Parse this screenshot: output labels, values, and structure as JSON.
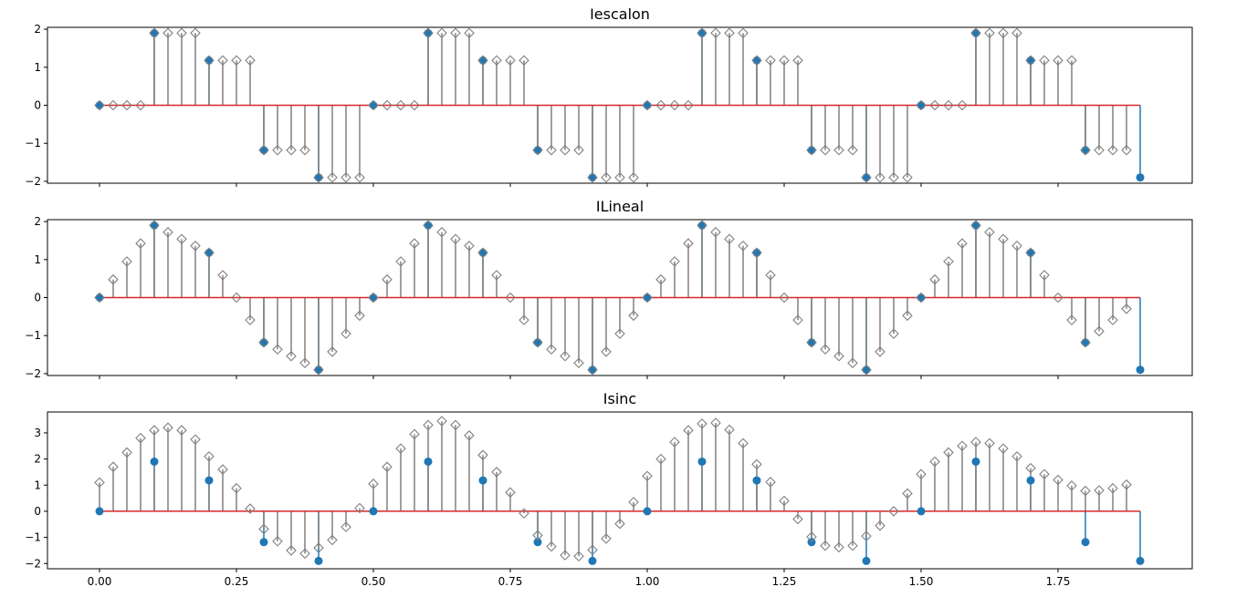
{
  "colors": {
    "sample_marker": "#1f77b4",
    "interp_stem": "#808080",
    "baseline": "#d62728"
  },
  "chart_data": [
    {
      "type": "stem",
      "title": "Iescalon",
      "xlim": [
        -0.095,
        1.995
      ],
      "ylim": [
        -2.05,
        2.05
      ],
      "yticks": [
        -2,
        -1,
        0,
        1,
        2
      ],
      "ytick_labels": [
        "−2",
        "−1",
        "0",
        "1",
        "2"
      ],
      "xticks": [
        0,
        0.25,
        0.5,
        0.75,
        1.0,
        1.25,
        1.5,
        1.75
      ],
      "xtick_labels": [],
      "samples": {
        "x": [
          0,
          0.1,
          0.2,
          0.3,
          0.4,
          0.5,
          0.6,
          0.7,
          0.8,
          0.9,
          1.0,
          1.1,
          1.2,
          1.3,
          1.4,
          1.5,
          1.6,
          1.7,
          1.8,
          1.9
        ],
        "y": [
          0,
          1.9,
          1.18,
          -1.18,
          -1.9,
          0,
          1.9,
          1.18,
          -1.18,
          -1.9,
          0,
          1.9,
          1.18,
          -1.18,
          -1.9,
          0,
          1.9,
          1.18,
          -1.18,
          -1.9
        ]
      },
      "interp": {
        "x": [
          0,
          0.025,
          0.05,
          0.075,
          0.1,
          0.125,
          0.15,
          0.175,
          0.2,
          0.225,
          0.25,
          0.275,
          0.3,
          0.325,
          0.35,
          0.375,
          0.4,
          0.425,
          0.45,
          0.475,
          0.5,
          0.525,
          0.55,
          0.575,
          0.6,
          0.625,
          0.65,
          0.675,
          0.7,
          0.725,
          0.75,
          0.775,
          0.8,
          0.825,
          0.85,
          0.875,
          0.9,
          0.925,
          0.95,
          0.975,
          1.0,
          1.025,
          1.05,
          1.075,
          1.1,
          1.125,
          1.15,
          1.175,
          1.2,
          1.225,
          1.25,
          1.275,
          1.3,
          1.325,
          1.35,
          1.375,
          1.4,
          1.425,
          1.45,
          1.475,
          1.5,
          1.525,
          1.55,
          1.575,
          1.6,
          1.625,
          1.65,
          1.675,
          1.7,
          1.725,
          1.75,
          1.775,
          1.8,
          1.825,
          1.85,
          1.875
        ],
        "y": [
          0,
          0,
          0,
          0,
          1.9,
          1.9,
          1.9,
          1.9,
          1.18,
          1.18,
          1.18,
          1.18,
          -1.18,
          -1.18,
          -1.18,
          -1.18,
          -1.9,
          -1.9,
          -1.9,
          -1.9,
          0,
          0,
          0,
          0,
          1.9,
          1.9,
          1.9,
          1.9,
          1.18,
          1.18,
          1.18,
          1.18,
          -1.18,
          -1.18,
          -1.18,
          -1.18,
          -1.9,
          -1.9,
          -1.9,
          -1.9,
          0,
          0,
          0,
          0,
          1.9,
          1.9,
          1.9,
          1.9,
          1.18,
          1.18,
          1.18,
          1.18,
          -1.18,
          -1.18,
          -1.18,
          -1.18,
          -1.9,
          -1.9,
          -1.9,
          -1.9,
          0,
          0,
          0,
          0,
          1.9,
          1.9,
          1.9,
          1.9,
          1.18,
          1.18,
          1.18,
          1.18,
          -1.18,
          -1.18,
          -1.18,
          -1.18
        ]
      }
    },
    {
      "type": "stem",
      "title": "ILineal",
      "xlim": [
        -0.095,
        1.995
      ],
      "ylim": [
        -2.05,
        2.05
      ],
      "yticks": [
        -2,
        -1,
        0,
        1,
        2
      ],
      "ytick_labels": [
        "−2",
        "−1",
        "0",
        "1",
        "2"
      ],
      "xticks": [
        0,
        0.25,
        0.5,
        0.75,
        1.0,
        1.25,
        1.5,
        1.75
      ],
      "xtick_labels": [],
      "samples": {
        "x": [
          0,
          0.1,
          0.2,
          0.3,
          0.4,
          0.5,
          0.6,
          0.7,
          0.8,
          0.9,
          1.0,
          1.1,
          1.2,
          1.3,
          1.4,
          1.5,
          1.6,
          1.7,
          1.8,
          1.9
        ],
        "y": [
          0,
          1.9,
          1.18,
          -1.18,
          -1.9,
          0,
          1.9,
          1.18,
          -1.18,
          -1.9,
          0,
          1.9,
          1.18,
          -1.18,
          -1.9,
          0,
          1.9,
          1.18,
          -1.18,
          -1.9
        ]
      },
      "interp": {
        "x": [
          0,
          0.025,
          0.05,
          0.075,
          0.1,
          0.125,
          0.15,
          0.175,
          0.2,
          0.225,
          0.25,
          0.275,
          0.3,
          0.325,
          0.35,
          0.375,
          0.4,
          0.425,
          0.45,
          0.475,
          0.5,
          0.525,
          0.55,
          0.575,
          0.6,
          0.625,
          0.65,
          0.675,
          0.7,
          0.725,
          0.75,
          0.775,
          0.8,
          0.825,
          0.85,
          0.875,
          0.9,
          0.925,
          0.95,
          0.975,
          1.0,
          1.025,
          1.05,
          1.075,
          1.1,
          1.125,
          1.15,
          1.175,
          1.2,
          1.225,
          1.25,
          1.275,
          1.3,
          1.325,
          1.35,
          1.375,
          1.4,
          1.425,
          1.45,
          1.475,
          1.5,
          1.525,
          1.55,
          1.575,
          1.6,
          1.625,
          1.65,
          1.675,
          1.7,
          1.725,
          1.75,
          1.775,
          1.8,
          1.825,
          1.85,
          1.875
        ],
        "y": [
          0,
          0.475,
          0.95,
          1.425,
          1.9,
          1.72,
          1.54,
          1.36,
          1.18,
          0.59,
          0,
          -0.59,
          -1.18,
          -1.36,
          -1.54,
          -1.72,
          -1.9,
          -1.425,
          -0.95,
          -0.475,
          0,
          0.475,
          0.95,
          1.425,
          1.9,
          1.72,
          1.54,
          1.36,
          1.18,
          0.59,
          0,
          -0.59,
          -1.18,
          -1.36,
          -1.54,
          -1.72,
          -1.9,
          -1.425,
          -0.95,
          -0.475,
          0,
          0.475,
          0.95,
          1.425,
          1.9,
          1.72,
          1.54,
          1.36,
          1.18,
          0.59,
          0,
          -0.59,
          -1.18,
          -1.36,
          -1.54,
          -1.72,
          -1.9,
          -1.425,
          -0.95,
          -0.475,
          0,
          0.475,
          0.95,
          1.425,
          1.9,
          1.72,
          1.54,
          1.36,
          1.18,
          0.59,
          0,
          -0.59,
          -1.18,
          -0.885,
          -0.59,
          -0.295
        ]
      }
    },
    {
      "type": "stem",
      "title": "Isinc",
      "xlim": [
        -0.095,
        1.995
      ],
      "ylim": [
        -2.2,
        3.8
      ],
      "yticks": [
        -2,
        -1,
        0,
        1,
        2,
        3
      ],
      "ytick_labels": [
        "−2",
        "−1",
        "0",
        "1",
        "2",
        "3"
      ],
      "xticks": [
        0,
        0.25,
        0.5,
        0.75,
        1.0,
        1.25,
        1.5,
        1.75
      ],
      "xtick_labels": [
        "0.00",
        "0.25",
        "0.50",
        "0.75",
        "1.00",
        "1.25",
        "1.50",
        "1.75"
      ],
      "samples": {
        "x": [
          0,
          0.1,
          0.2,
          0.3,
          0.4,
          0.5,
          0.6,
          0.7,
          0.8,
          0.9,
          1.0,
          1.1,
          1.2,
          1.3,
          1.4,
          1.5,
          1.6,
          1.7,
          1.8,
          1.9
        ],
        "y": [
          0,
          1.9,
          1.18,
          -1.18,
          -1.9,
          0,
          1.9,
          1.18,
          -1.18,
          -1.9,
          0,
          1.9,
          1.18,
          -1.18,
          -1.9,
          0,
          1.9,
          1.18,
          -1.18,
          -1.9
        ]
      },
      "interp": {
        "x": [
          0,
          0.025,
          0.05,
          0.075,
          0.1,
          0.125,
          0.15,
          0.175,
          0.2,
          0.225,
          0.25,
          0.275,
          0.3,
          0.325,
          0.35,
          0.375,
          0.4,
          0.425,
          0.45,
          0.475,
          0.5,
          0.525,
          0.55,
          0.575,
          0.6,
          0.625,
          0.65,
          0.675,
          0.7,
          0.725,
          0.75,
          0.775,
          0.8,
          0.825,
          0.85,
          0.875,
          0.9,
          0.925,
          0.95,
          0.975,
          1.0,
          1.025,
          1.05,
          1.075,
          1.1,
          1.125,
          1.15,
          1.175,
          1.2,
          1.225,
          1.25,
          1.275,
          1.3,
          1.325,
          1.35,
          1.375,
          1.4,
          1.425,
          1.45,
          1.475,
          1.5,
          1.525,
          1.55,
          1.575,
          1.6,
          1.625,
          1.65,
          1.675,
          1.7,
          1.725,
          1.75,
          1.775,
          1.8,
          1.825,
          1.85,
          1.875
        ],
        "y": [
          1.1,
          1.7,
          2.25,
          2.8,
          3.1,
          3.2,
          3.1,
          2.75,
          2.1,
          1.6,
          0.88,
          0.1,
          -0.68,
          -1.15,
          -1.5,
          -1.62,
          -1.4,
          -1.1,
          -0.6,
          0.12,
          1.05,
          1.7,
          2.4,
          2.95,
          3.3,
          3.45,
          3.3,
          2.9,
          2.15,
          1.5,
          0.72,
          -0.08,
          -0.92,
          -1.35,
          -1.68,
          -1.72,
          -1.48,
          -1.05,
          -0.48,
          0.35,
          1.35,
          2.0,
          2.65,
          3.1,
          3.35,
          3.38,
          3.12,
          2.6,
          1.8,
          1.12,
          0.4,
          -0.3,
          -0.98,
          -1.32,
          -1.38,
          -1.32,
          -0.95,
          -0.55,
          0.0,
          0.68,
          1.42,
          1.9,
          2.25,
          2.5,
          2.65,
          2.6,
          2.4,
          2.1,
          1.65,
          1.42,
          1.2,
          0.98,
          0.78,
          0.8,
          0.88,
          1.02
        ]
      }
    }
  ]
}
